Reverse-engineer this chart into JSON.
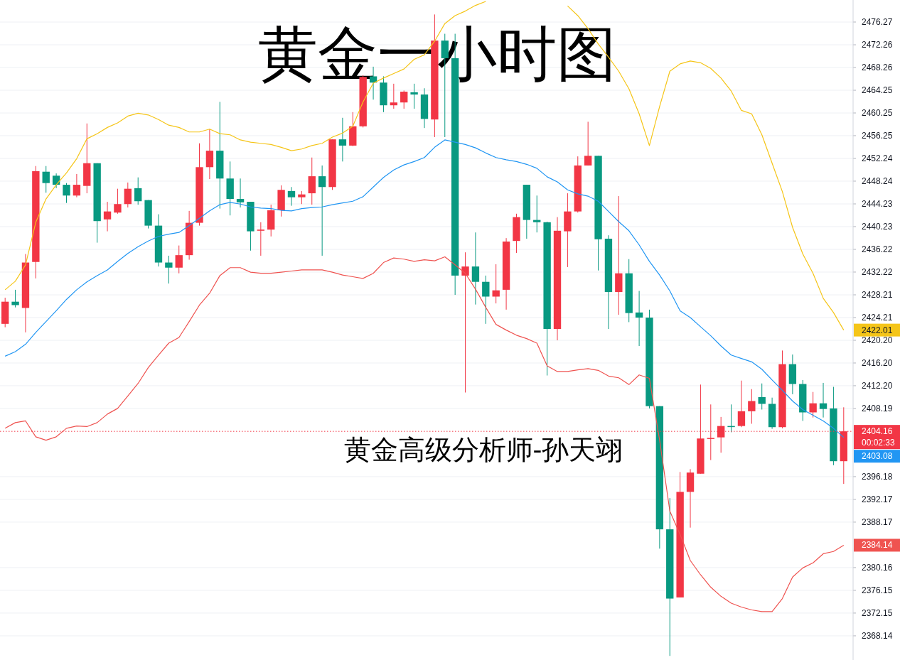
{
  "chart_data": {
    "type": "candlestick",
    "title": "黄金一小时图",
    "annotations": [
      "黄金高级分析师-孙天翊",
      "2422.01",
      "2403.08",
      "2384.14"
    ],
    "categories": [
      null,
      null,
      null,
      null,
      null,
      null,
      null,
      null,
      null,
      null,
      null,
      null,
      null,
      null,
      null,
      null,
      null,
      null,
      null,
      null,
      null,
      null,
      null,
      null,
      null,
      null,
      null,
      null,
      null,
      null,
      null,
      null,
      null,
      null,
      null,
      null,
      null,
      null,
      null,
      null,
      null,
      null,
      null,
      null,
      null,
      null,
      null,
      null,
      null,
      null,
      null,
      null,
      null,
      null,
      null,
      null,
      null,
      null,
      null,
      null,
      null,
      null,
      null,
      null,
      null,
      null,
      null,
      null,
      null,
      null,
      null,
      null,
      null,
      null,
      null,
      null,
      null,
      null,
      null,
      null,
      null,
      null,
      null
    ],
    "ohlc": [
      [
        2423.1,
        2427.7,
        2422.5,
        2427.0
      ],
      [
        2427.0,
        2429.1,
        2426.0,
        2426.4
      ],
      [
        2425.9,
        2435.4,
        2421.6,
        2433.9
      ],
      [
        2434.0,
        2450.9,
        2431.1,
        2450.0
      ],
      [
        2449.9,
        2450.9,
        2446.2,
        2447.9
      ],
      [
        2449.2,
        2449.6,
        2447.0,
        2447.6
      ],
      [
        2447.6,
        2447.9,
        2444.4,
        2445.7
      ],
      [
        2445.7,
        2449.5,
        2445.4,
        2447.6
      ],
      [
        2447.4,
        2458.4,
        2446.1,
        2451.4
      ],
      [
        2451.4,
        2451.4,
        2437.4,
        2441.2
      ],
      [
        2441.5,
        2444.6,
        2439.4,
        2442.9
      ],
      [
        2442.7,
        2446.9,
        2442.5,
        2444.2
      ],
      [
        2444.2,
        2448.0,
        2443.6,
        2446.9
      ],
      [
        2447.0,
        2448.9,
        2444.1,
        2444.7
      ],
      [
        2444.9,
        2444.9,
        2439.9,
        2440.4
      ],
      [
        2440.4,
        2442.4,
        2433.2,
        2433.9
      ],
      [
        2433.9,
        2435.1,
        2430.2,
        2433.0
      ],
      [
        2433.0,
        2436.9,
        2432.0,
        2435.2
      ],
      [
        2435.2,
        2443.0,
        2434.4,
        2440.9
      ],
      [
        2440.9,
        2454.9,
        2440.4,
        2450.7
      ],
      [
        2450.7,
        2457.4,
        2448.6,
        2453.6
      ],
      [
        2453.6,
        2462.2,
        2443.4,
        2448.7
      ],
      [
        2448.7,
        2451.7,
        2442.2,
        2445.1
      ],
      [
        2445.1,
        2448.7,
        2443.6,
        2444.5
      ],
      [
        2444.6,
        2444.6,
        2436.0,
        2439.4
      ],
      [
        2439.5,
        2441.0,
        2435.1,
        2439.7
      ],
      [
        2439.7,
        2444.1,
        2438.5,
        2443.1
      ],
      [
        2443.1,
        2447.5,
        2442.0,
        2446.7
      ],
      [
        2446.5,
        2447.2,
        2443.9,
        2445.4
      ],
      [
        2445.4,
        2446.5,
        2444.2,
        2445.9
      ],
      [
        2446.1,
        2452.4,
        2444.1,
        2449.1
      ],
      [
        2449.1,
        2451.0,
        2435.1,
        2447.2
      ],
      [
        2447.2,
        2455.6,
        2446.7,
        2455.6
      ],
      [
        2455.6,
        2459.4,
        2451.7,
        2454.5
      ],
      [
        2454.5,
        2460.4,
        2454.4,
        2457.9
      ],
      [
        2457.9,
        2466.9,
        2457.7,
        2466.6
      ],
      [
        2466.7,
        2468.4,
        2462.6,
        2465.6
      ],
      [
        2465.6,
        2466.7,
        2460.4,
        2461.6
      ],
      [
        2461.6,
        2465.4,
        2461.0,
        2462.1
      ],
      [
        2462.1,
        2464.2,
        2461.0,
        2464.0
      ],
      [
        2463.9,
        2465.4,
        2461.0,
        2463.5
      ],
      [
        2463.5,
        2464.6,
        2457.6,
        2459.2
      ],
      [
        2459.1,
        2477.6,
        2456.0,
        2473.0
      ],
      [
        2473.0,
        2474.2,
        2456.0,
        2469.9
      ],
      [
        2469.9,
        2474.2,
        2428.2,
        2431.6
      ],
      [
        2431.6,
        2435.7,
        2411.0,
        2433.2
      ],
      [
        2433.2,
        2439.2,
        2426.5,
        2430.5
      ],
      [
        2430.5,
        2431.6,
        2423.1,
        2427.9
      ],
      [
        2427.9,
        2433.6,
        2426.7,
        2429.0
      ],
      [
        2429.1,
        2438.2,
        2425.6,
        2437.6
      ],
      [
        2437.7,
        2442.5,
        2435.6,
        2441.9
      ],
      [
        2447.6,
        2447.6,
        2438.1,
        2441.4
      ],
      [
        2441.4,
        2445.7,
        2439.2,
        2441.0
      ],
      [
        2441.0,
        2441.1,
        2414.0,
        2422.2
      ],
      [
        2422.2,
        2441.9,
        2420.2,
        2439.5
      ],
      [
        2439.4,
        2446.1,
        2433.1,
        2442.9
      ],
      [
        2442.9,
        2452.6,
        2442.7,
        2451.0
      ],
      [
        2451.0,
        2458.7,
        2451.0,
        2452.7
      ],
      [
        2452.7,
        2452.7,
        2432.5,
        2438.0
      ],
      [
        2438.1,
        2438.7,
        2422.2,
        2428.7
      ],
      [
        2428.7,
        2445.6,
        2424.7,
        2432.0
      ],
      [
        2432.0,
        2434.5,
        2423.4,
        2425.0
      ],
      [
        2425.1,
        2428.9,
        2419.2,
        2424.2
      ],
      [
        2424.2,
        2425.6,
        2408.2,
        2408.6
      ],
      [
        2408.6,
        2408.6,
        2383.5,
        2386.9
      ],
      [
        2386.9,
        2392.4,
        2364.6,
        2374.7
      ],
      [
        2374.9,
        2397.0,
        2374.9,
        2393.5
      ],
      [
        2393.5,
        2397.5,
        2387.2,
        2396.9
      ],
      [
        2396.7,
        2412.4,
        2396.7,
        2402.9
      ],
      [
        2402.9,
        2408.9,
        2399.1,
        2403.0
      ],
      [
        2403.1,
        2406.7,
        2400.4,
        2405.1
      ],
      [
        2405.1,
        2408.9,
        2404.0,
        2405.0
      ],
      [
        2405.1,
        2413.1,
        2404.9,
        2407.7
      ],
      [
        2407.7,
        2411.6,
        2405.5,
        2409.5
      ],
      [
        2410.2,
        2412.6,
        2408.0,
        2409.0
      ],
      [
        2409.0,
        2410.1,
        2404.6,
        2404.9
      ],
      [
        2404.9,
        2418.4,
        2404.7,
        2416.0
      ],
      [
        2416.0,
        2417.7,
        2410.7,
        2412.5
      ],
      [
        2412.5,
        2413.2,
        2406.0,
        2407.5
      ],
      [
        2407.5,
        2411.1,
        2406.6,
        2409.1
      ],
      [
        2409.1,
        2412.7,
        2406.6,
        2408.1
      ],
      [
        2408.2,
        2412.0,
        2398.2,
        2398.9
      ],
      [
        2398.9,
        2408.4,
        2394.9,
        2404.16
      ]
    ],
    "series": [
      {
        "type": "line",
        "color": "#f5c518",
        "values": [
          2429.1,
          2430.6,
          2433.5,
          2441.0,
          2445.1,
          2447.6,
          2449.7,
          2452.2,
          2455.7,
          2456.6,
          2457.7,
          2458.5,
          2459.7,
          2460.2,
          2459.9,
          2459.1,
          2458.1,
          2457.7,
          2456.9,
          2456.9,
          2457.4,
          2456.6,
          2456.4,
          2455.5,
          2455.1,
          2454.9,
          2454.7,
          2454.2,
          2453.6,
          2453.9,
          2454.5,
          2454.9,
          2456.0,
          2456.7,
          2457.9,
          2462.2,
          2465.5,
          2466.4,
          2467.2,
          2468.0,
          2469.7,
          2470.5,
          2472.9,
          2476.0,
          2477.4,
          2478.2,
          2479.2,
          2479.9,
          null,
          null,
          null,
          null,
          null,
          null,
          null,
          2479.1,
          2477.4,
          2475.1,
          2472.4,
          2470.1,
          2467.6,
          2464.5,
          2460.1,
          2454.5,
          2461.4,
          2467.6,
          2468.9,
          2469.4,
          2469.1,
          2468.1,
          2466.4,
          2464.1,
          2460.7,
          2460.1,
          2456.4,
          2451.4,
          2446.4,
          2440.1,
          2435.4,
          2432.0,
          2427.6,
          2425.1,
          2422.0
        ]
      },
      {
        "type": "line",
        "color": "#2196f3",
        "values": [
          2417.4,
          2418.2,
          2419.5,
          2421.6,
          2423.5,
          2425.4,
          2427.4,
          2429.1,
          2430.5,
          2431.6,
          2432.6,
          2434.1,
          2435.5,
          2436.7,
          2437.7,
          2438.5,
          2438.9,
          2439.2,
          2440.4,
          2441.7,
          2443.0,
          2444.1,
          2444.5,
          2444.2,
          2443.7,
          2443.5,
          2443.4,
          2443.1,
          2443.0,
          2443.4,
          2443.6,
          2443.7,
          2444.1,
          2444.4,
          2444.7,
          2445.5,
          2447.2,
          2448.9,
          2450.2,
          2451.1,
          2451.7,
          2452.4,
          2454.2,
          2455.5,
          2455.1,
          2454.7,
          2454.1,
          2453.2,
          2452.4,
          2452.0,
          2451.7,
          2451.2,
          2450.5,
          2449.0,
          2448.1,
          2446.7,
          2446.0,
          2445.6,
          2444.7,
          2442.9,
          2441.1,
          2439.5,
          2437.0,
          2434.1,
          2431.7,
          2428.9,
          2425.4,
          2424.2,
          2422.6,
          2421.0,
          2419.2,
          2417.6,
          2417.0,
          2416.4,
          2415.1,
          2413.2,
          2411.4,
          2409.5,
          2408.0,
          2407.0,
          2406.0,
          2404.7,
          2403.1
        ]
      },
      {
        "type": "line",
        "color": "#ef5350",
        "values": [
          2404.7,
          2405.7,
          2406.0,
          2403.2,
          2402.6,
          2403.2,
          2404.7,
          2405.1,
          2405.0,
          2405.7,
          2407.2,
          2408.2,
          2410.4,
          2412.6,
          2415.4,
          2417.6,
          2419.7,
          2420.7,
          2423.5,
          2426.4,
          2428.5,
          2431.6,
          2433.0,
          2433.0,
          2432.2,
          2432.0,
          2432.0,
          2432.2,
          2432.4,
          2432.6,
          2432.6,
          2432.6,
          2432.2,
          2431.7,
          2431.4,
          2431.1,
          2432.0,
          2433.9,
          2434.7,
          2434.5,
          2434.1,
          2434.4,
          2434.2,
          2434.9,
          2433.5,
          2432.0,
          2429.2,
          2426.0,
          2423.0,
          2422.0,
          2421.1,
          2420.5,
          2419.7,
          2415.7,
          2414.7,
          2414.7,
          2415.0,
          2415.2,
          2414.9,
          2413.9,
          2413.6,
          2412.4,
          2414.1,
          2413.5,
          2402.6,
          2390.1,
          2386.0,
          2381.4,
          2378.9,
          2376.7,
          2375.1,
          2373.9,
          2373.2,
          2372.7,
          2372.4,
          2372.4,
          2374.7,
          2378.5,
          2380.1,
          2381.0,
          2382.6,
          2383.0,
          2384.1
        ]
      }
    ],
    "ref_lines": [
      {
        "axis": "y",
        "value": 2404.16,
        "label": "2404.16\n00:02:33",
        "color": "#f23645",
        "line_style": "dotted"
      }
    ],
    "ylim": [
      2363.88,
      2480.15
    ],
    "yticks": [
      2368.14,
      2372.15,
      2376.15,
      {
        "value": 2380.16,
        "label": "2380.16"
      },
      2388.17,
      2392.17,
      2396.18,
      2408.19,
      {
        "value": 2412.2,
        "label": "2412.20"
      },
      {
        "value": 2416.2,
        "label": "2416.20"
      },
      {
        "value": 2420.2,
        "label": "2420.20"
      },
      2424.21,
      2428.21,
      2432.22,
      2436.22,
      2440.23,
      2444.23,
      2448.24,
      2452.24,
      2456.25,
      2460.25,
      2464.25,
      2468.26,
      2472.26,
      2476.27
    ],
    "grid": "y"
  }
}
